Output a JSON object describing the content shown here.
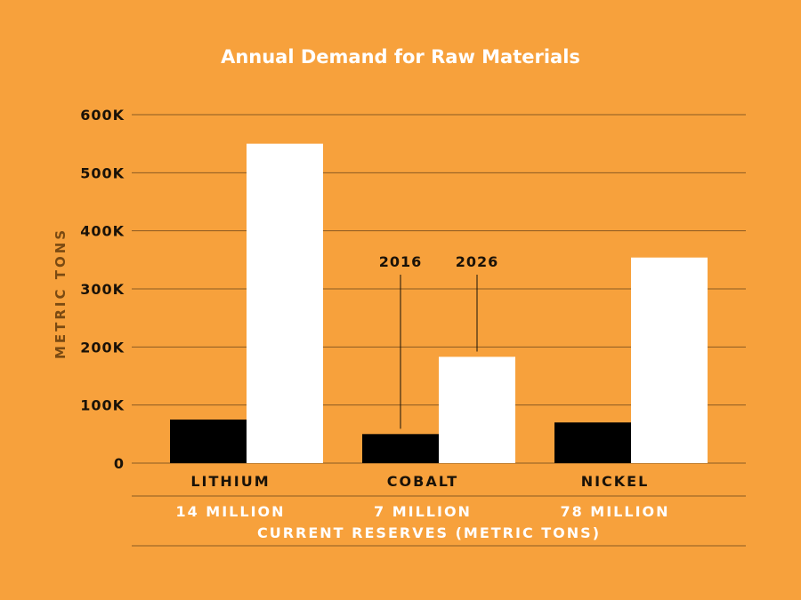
{
  "chart_data": {
    "type": "bar",
    "title": "Annual Demand for Raw Materials",
    "ylabel": "METRIC TONS",
    "ylim": [
      0,
      600000
    ],
    "yticks": [
      0,
      100000,
      200000,
      300000,
      400000,
      500000,
      600000
    ],
    "ytick_labels": [
      "0",
      "100K",
      "200K",
      "300K",
      "400K",
      "500K",
      "600K"
    ],
    "grid": true,
    "categories": [
      "LITHIUM",
      "COBALT",
      "NICKEL"
    ],
    "series": [
      {
        "name": "2016",
        "color": "#000000",
        "values": [
          75000,
          50000,
          70000
        ]
      },
      {
        "name": "2026",
        "color": "#ffffff",
        "values": [
          550000,
          183000,
          354000
        ]
      }
    ],
    "reserves": [
      "14 MILLION",
      "7 MILLION",
      "78 MILLION"
    ],
    "reserves_label": "CURRENT RESERVES (METRIC TONS)"
  },
  "colors": {
    "background": "#f7a13c",
    "grid": "#8a5a22",
    "text_dark": "#1a1208",
    "text_light": "#ffffff"
  }
}
